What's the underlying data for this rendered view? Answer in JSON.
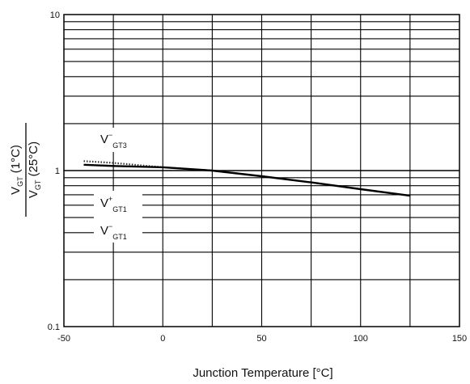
{
  "chart_data": {
    "type": "line",
    "xlabel": "Junction Temperature [°C]",
    "ylabel": {
      "numerator": {
        "v": "V",
        "sub": "GT",
        "tail": " (1°C)"
      },
      "denominator": {
        "v": "V",
        "sub": "GT",
        "tail": " (25°C)"
      }
    },
    "xlim": [
      -50,
      150
    ],
    "ylim": [
      0.1,
      10
    ],
    "yscale": "log",
    "grid": true,
    "x_ticks": [
      "-50",
      "0",
      "50",
      "100",
      "150"
    ],
    "y_ticks": [
      "0.1",
      "1",
      "10"
    ],
    "series": [
      {
        "name": "V⁻GT3",
        "style": "dotted",
        "x": [
          -40,
          -25,
          0,
          25
        ],
        "y": [
          1.15,
          1.12,
          1.05,
          1.0
        ]
      },
      {
        "name": "V⁺GT1 / V⁻GT1",
        "style": "solid",
        "x": [
          -40,
          -25,
          0,
          25,
          50,
          75,
          100,
          125
        ],
        "y": [
          1.09,
          1.07,
          1.05,
          1.0,
          0.92,
          0.84,
          0.76,
          0.69
        ]
      }
    ],
    "annotations": [
      {
        "v": "V",
        "sup": "−",
        "sub": "GT3"
      },
      {
        "v": "V",
        "sup": "+",
        "sub": "GT1"
      },
      {
        "v": "V",
        "sup": "−",
        "sub": "GT1"
      }
    ]
  }
}
